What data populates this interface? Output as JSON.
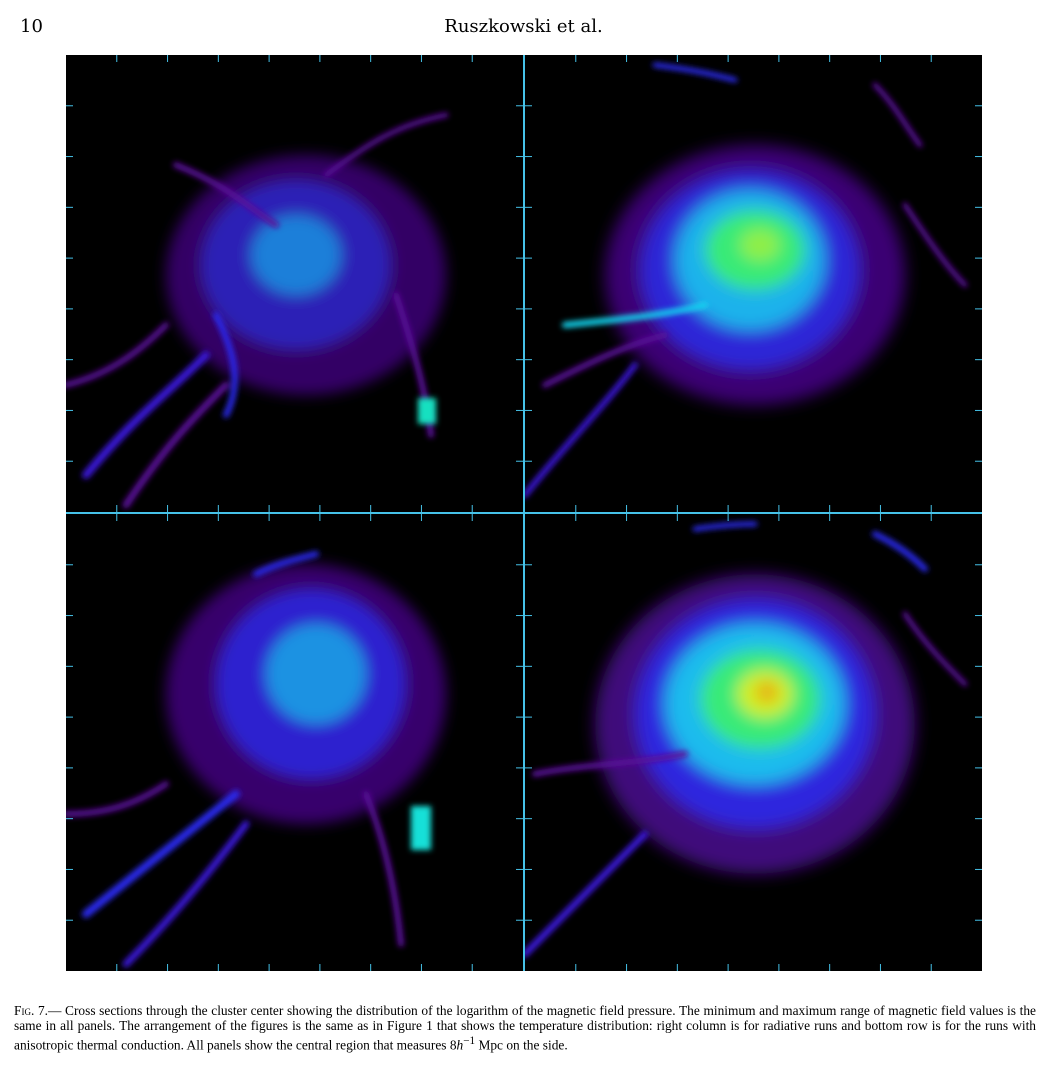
{
  "header": {
    "page_number": "10",
    "running_title": "Ruszkowski et al."
  },
  "figure": {
    "panels": [
      {
        "position": "top-left",
        "row": "top",
        "column": "left"
      },
      {
        "position": "top-right",
        "row": "top",
        "column": "right"
      },
      {
        "position": "bottom-left",
        "row": "bottom",
        "column": "left"
      },
      {
        "position": "bottom-right",
        "row": "bottom",
        "column": "right"
      }
    ],
    "colormap": [
      "#000000",
      "#5a0a9a",
      "#2a2cf0",
      "#18d6f0",
      "#3cf06a",
      "#d8f020",
      "#f09010"
    ],
    "frame_color": "#46c2e8"
  },
  "caption": {
    "label": "Fig. 7.",
    "text": "— Cross sections through the cluster center showing the distribution of the logarithm of the magnetic field pressure. The minimum and maximum range of magnetic field values is the same in all panels. The arrangement of the figures is the same as in Figure 1 that shows the temperature distribution: right column is for radiative runs and bottom row is for the runs with anisotropic thermal conduction. All panels show the central region that measures 8",
    "math_h": "h",
    "math_exp": "−1",
    "text_end": " Mpc on the side."
  }
}
